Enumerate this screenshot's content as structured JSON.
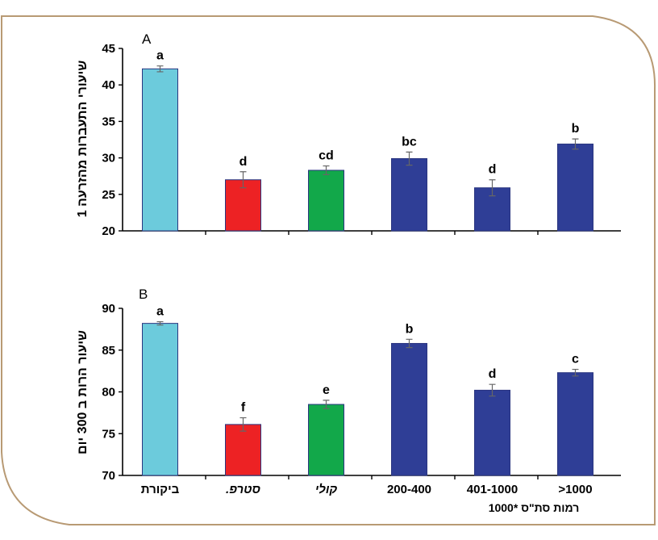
{
  "chart_data": [
    {
      "type": "bar",
      "panel_label": "A",
      "ylabel": "שיעורי התעברות מהזרעה 1",
      "xlabel": "",
      "ylim": [
        20,
        45
      ],
      "yticks": [
        20,
        25,
        30,
        35,
        40,
        45
      ],
      "categories": [
        "ביקורת",
        "סטרפ.",
        "קולי",
        "200-400",
        "401-1000",
        ">1000"
      ],
      "values": [
        42.2,
        27.0,
        28.3,
        29.9,
        25.9,
        31.9
      ],
      "errors": [
        0.4,
        1.1,
        0.6,
        0.9,
        1.1,
        0.7
      ],
      "significance": [
        "a",
        "d",
        "cd",
        "bc",
        "d",
        "b"
      ],
      "colors": [
        "#6ccbdc",
        "#ed2224",
        "#12a84a",
        "#2f3e96",
        "#2f3e96",
        "#2f3e96"
      ]
    },
    {
      "type": "bar",
      "panel_label": "B",
      "ylabel": "שיעור הרות ב 300 יום",
      "xlabel": "רמות סת\"ס *1000",
      "ylim": [
        70,
        90
      ],
      "yticks": [
        70,
        75,
        80,
        85,
        90
      ],
      "categories": [
        "ביקורת",
        "סטרפ.",
        "קולי",
        "200-400",
        "401-1000",
        ">1000"
      ],
      "values": [
        88.2,
        76.1,
        78.5,
        85.8,
        80.2,
        82.3
      ],
      "errors": [
        0.2,
        0.8,
        0.5,
        0.5,
        0.7,
        0.4
      ],
      "significance": [
        "a",
        "f",
        "e",
        "b",
        "d",
        "c"
      ],
      "colors": [
        "#6ccbdc",
        "#ed2224",
        "#12a84a",
        "#2f3e96",
        "#2f3e96",
        "#2f3e96"
      ]
    }
  ]
}
